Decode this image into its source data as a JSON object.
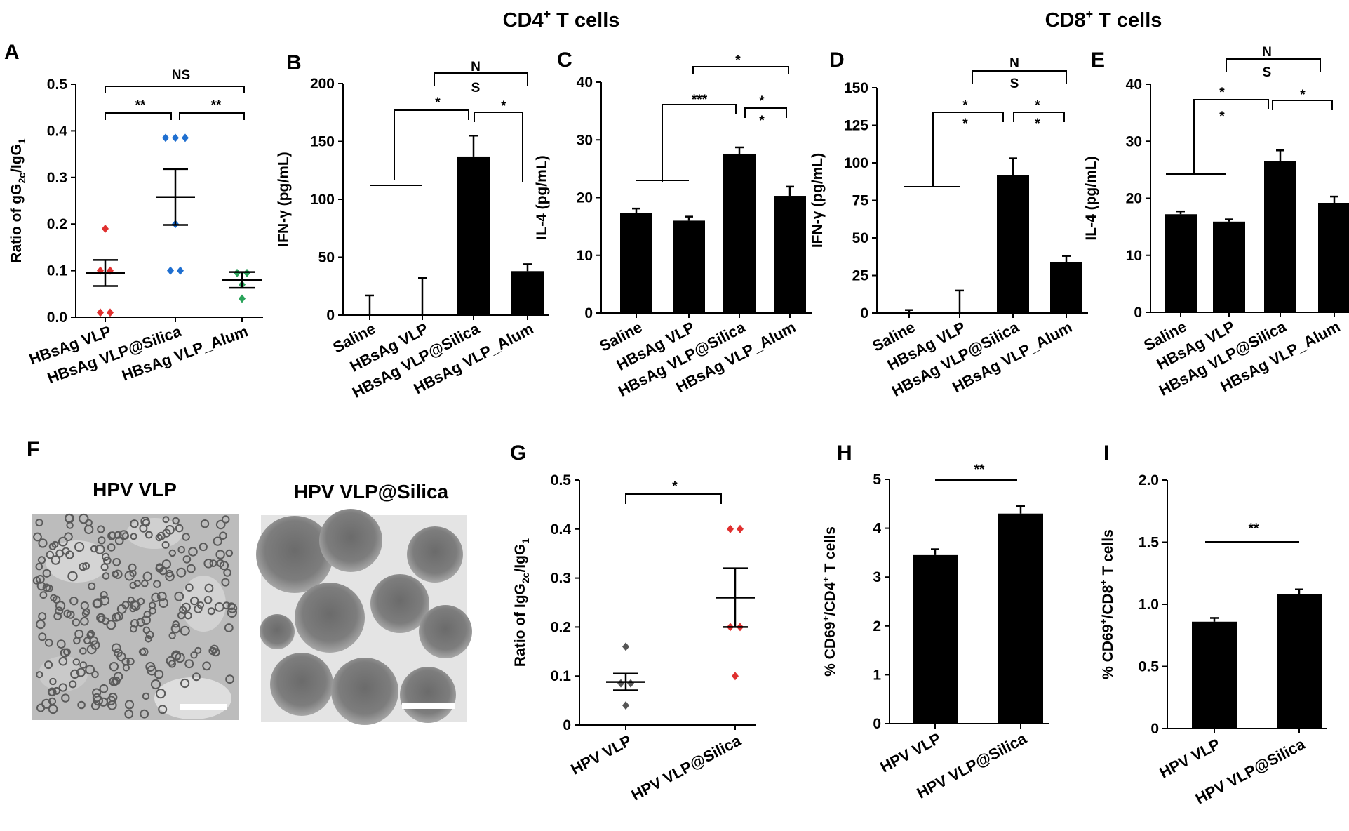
{
  "header": {
    "cd4_title": "CD4",
    "cd4_sup": "+",
    "cd4_rest": " T cells",
    "cd8_title": "CD8",
    "cd8_sup": "+",
    "cd8_rest": " T cells"
  },
  "colors": {
    "red": "#e0302f",
    "blue": "#1f6fd0",
    "green": "#2aa35a",
    "gray": "#555555",
    "bar": "#000000"
  },
  "images": {
    "letter": "F",
    "left_title": "HPV VLP",
    "right_title": "HPV VLP@Silica"
  },
  "chart_data": [
    {
      "id": "A",
      "type": "scatter",
      "ylabel_main": "Ratio of gG",
      "ylabel_sub": "2c",
      "ylabel_mid": "/IgG",
      "ylabel_sub2": "1",
      "ylim": [
        0,
        0.5
      ],
      "yticks": [
        "0.0",
        "0.1",
        "0.2",
        "0.3",
        "0.4",
        "0.5"
      ],
      "categories": [
        "HBsAg VLP",
        "HBsAg VLP@Silica",
        "HBsAg VLP_Alum"
      ],
      "series": [
        {
          "points": [
            0.19,
            0.1,
            0.1,
            0.01,
            0.01
          ],
          "mean": 0.095,
          "sem": 0.028,
          "color": "#e0302f"
        },
        {
          "points": [
            0.385,
            0.385,
            0.385,
            0.2,
            0.1,
            0.1
          ],
          "mean": 0.258,
          "sem": 0.06,
          "color": "#1f6fd0"
        },
        {
          "points": [
            0.095,
            0.095,
            0.07,
            0.04
          ],
          "mean": 0.08,
          "sem": 0.017,
          "color": "#2aa35a"
        }
      ],
      "significance": [
        {
          "from": 0,
          "to": 1,
          "label": "**"
        },
        {
          "from": 1,
          "to": 2,
          "label": "**"
        },
        {
          "from": 0,
          "to": 2,
          "label": "NS"
        }
      ]
    },
    {
      "id": "B",
      "type": "bar",
      "ylabel": "IFN-γ (pg/mL)",
      "ylim": [
        0,
        200
      ],
      "yticks": [
        "0",
        "50",
        "100",
        "150",
        "200"
      ],
      "categories": [
        "Saline",
        "HBsAg VLP",
        "HBsAg VLP@Silica",
        "HBsAg VLP_Alum"
      ],
      "values": [
        0,
        0,
        137,
        38
      ],
      "errors": [
        17,
        32,
        18,
        6
      ],
      "significance": [
        {
          "label": "*"
        },
        {
          "label": "*"
        },
        {
          "label": "N"
        },
        {
          "label": "S"
        }
      ]
    },
    {
      "id": "C",
      "type": "bar",
      "ylabel": "IL-4 (pg/mL)",
      "ylim": [
        0,
        40
      ],
      "yticks": [
        "0",
        "10",
        "20",
        "30",
        "40"
      ],
      "categories": [
        "Saline",
        "HBsAg VLP",
        "HBsAg VLP@Silica",
        "HBsAg VLP_Alum"
      ],
      "values": [
        17.3,
        16.0,
        27.6,
        20.3
      ],
      "errors": [
        0.8,
        0.7,
        1.1,
        1.6
      ],
      "significance": [
        {
          "label": "***"
        },
        {
          "label": "*"
        },
        {
          "label": "*"
        },
        {
          "label": "*"
        }
      ]
    },
    {
      "id": "D",
      "type": "bar",
      "ylabel": "IFN-γ (pg/mL)",
      "ylim": [
        0,
        150
      ],
      "yticks": [
        "0",
        "25",
        "50",
        "75",
        "100",
        "125",
        "150"
      ],
      "categories": [
        "Saline",
        "HBsAg VLP",
        "HBsAg VLP@Silica",
        "HBsAg VLP_Alum"
      ],
      "values": [
        0,
        0,
        92,
        34
      ],
      "errors": [
        2,
        15,
        11,
        4
      ],
      "significance": [
        {
          "label": "*"
        },
        {
          "label": "*"
        },
        {
          "label": "*"
        },
        {
          "label": "*"
        },
        {
          "label": "N"
        },
        {
          "label": "S"
        }
      ]
    },
    {
      "id": "E",
      "type": "bar",
      "ylabel": "IL-4 (pg/mL)",
      "ylim": [
        0,
        40
      ],
      "yticks": [
        "0",
        "10",
        "20",
        "30",
        "40"
      ],
      "categories": [
        "Saline",
        "HBsAg VLP",
        "HBsAg VLP@Silica",
        "HBsAg VLP_Alum"
      ],
      "values": [
        17.2,
        15.9,
        26.5,
        19.2
      ],
      "errors": [
        0.5,
        0.4,
        1.9,
        1.1
      ],
      "significance": [
        {
          "label": "*"
        },
        {
          "label": "*"
        },
        {
          "label": "*"
        },
        {
          "label": "N"
        },
        {
          "label": "S"
        }
      ]
    },
    {
      "id": "G",
      "type": "scatter",
      "ylabel_main": "Ratio of IgG",
      "ylabel_sub": "2c",
      "ylabel_mid": "/IgG",
      "ylabel_sub2": "1",
      "ylim": [
        0,
        0.5
      ],
      "yticks": [
        "0",
        "0.1",
        "0.2",
        "0.3",
        "0.4",
        "0.5"
      ],
      "categories": [
        "HPV VLP",
        "HPV VLP@Silica"
      ],
      "series": [
        {
          "points": [
            0.16,
            0.085,
            0.085,
            0.04
          ],
          "mean": 0.088,
          "sem": 0.017,
          "color": "#555555"
        },
        {
          "points": [
            0.4,
            0.4,
            0.2,
            0.2,
            0.1
          ],
          "mean": 0.26,
          "sem": 0.06,
          "color": "#e0302f"
        }
      ],
      "significance": [
        {
          "from": 0,
          "to": 1,
          "label": "*"
        }
      ]
    },
    {
      "id": "H",
      "type": "bar",
      "ylabel_main": "% CD69",
      "ylabel_sup": "+",
      "ylabel_mid": "/CD4",
      "ylabel_sup2": "+",
      "ylabel_end": " T cells",
      "ylim": [
        0,
        5
      ],
      "yticks": [
        "0",
        "1",
        "2",
        "3",
        "4",
        "5"
      ],
      "categories": [
        "HPV VLP",
        "HPV VLP@Silica"
      ],
      "values": [
        3.45,
        4.3
      ],
      "errors": [
        0.12,
        0.15
      ],
      "significance": [
        {
          "label": "**"
        }
      ]
    },
    {
      "id": "I",
      "type": "bar",
      "ylabel_main": "% CD69",
      "ylabel_sup": "+",
      "ylabel_mid": "/CD8",
      "ylabel_sup2": "+",
      "ylabel_end": " T cells",
      "ylim": [
        0,
        2.0
      ],
      "yticks": [
        "0",
        "0.5",
        "1.0",
        "1.5",
        "2.0"
      ],
      "categories": [
        "HPV VLP",
        "HPV VLP@Silica"
      ],
      "values": [
        0.86,
        1.08
      ],
      "errors": [
        0.03,
        0.04
      ],
      "significance": [
        {
          "label": "**"
        }
      ]
    }
  ]
}
